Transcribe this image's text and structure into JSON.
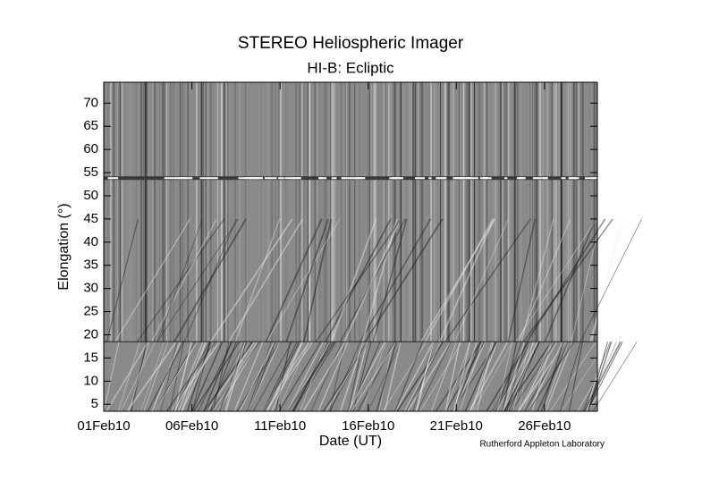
{
  "chart_data": {
    "type": "image",
    "title": "STEREO Heliospheric Imager",
    "subtitle": "HI-B: Ecliptic",
    "x_label": "Date (UT)",
    "y_label": "Elongation (°)",
    "credit": "Rutherford Appleton Laboratory",
    "xlim": [
      "2010-02-01",
      "2010-03-01"
    ],
    "xticks": [
      {
        "value": "2010-02-01",
        "label": "01Feb10"
      },
      {
        "value": "2010-02-06",
        "label": "06Feb10"
      },
      {
        "value": "2010-02-11",
        "label": "11Feb10"
      },
      {
        "value": "2010-02-16",
        "label": "16Feb10"
      },
      {
        "value": "2010-02-21",
        "label": "21Feb10"
      },
      {
        "value": "2010-02-26",
        "label": "26Feb10"
      }
    ],
    "ylim": [
      3.5,
      74.5
    ],
    "yticks": [
      5,
      10,
      15,
      20,
      25,
      30,
      35,
      40,
      45,
      50,
      55,
      60,
      65,
      70
    ]
  }
}
